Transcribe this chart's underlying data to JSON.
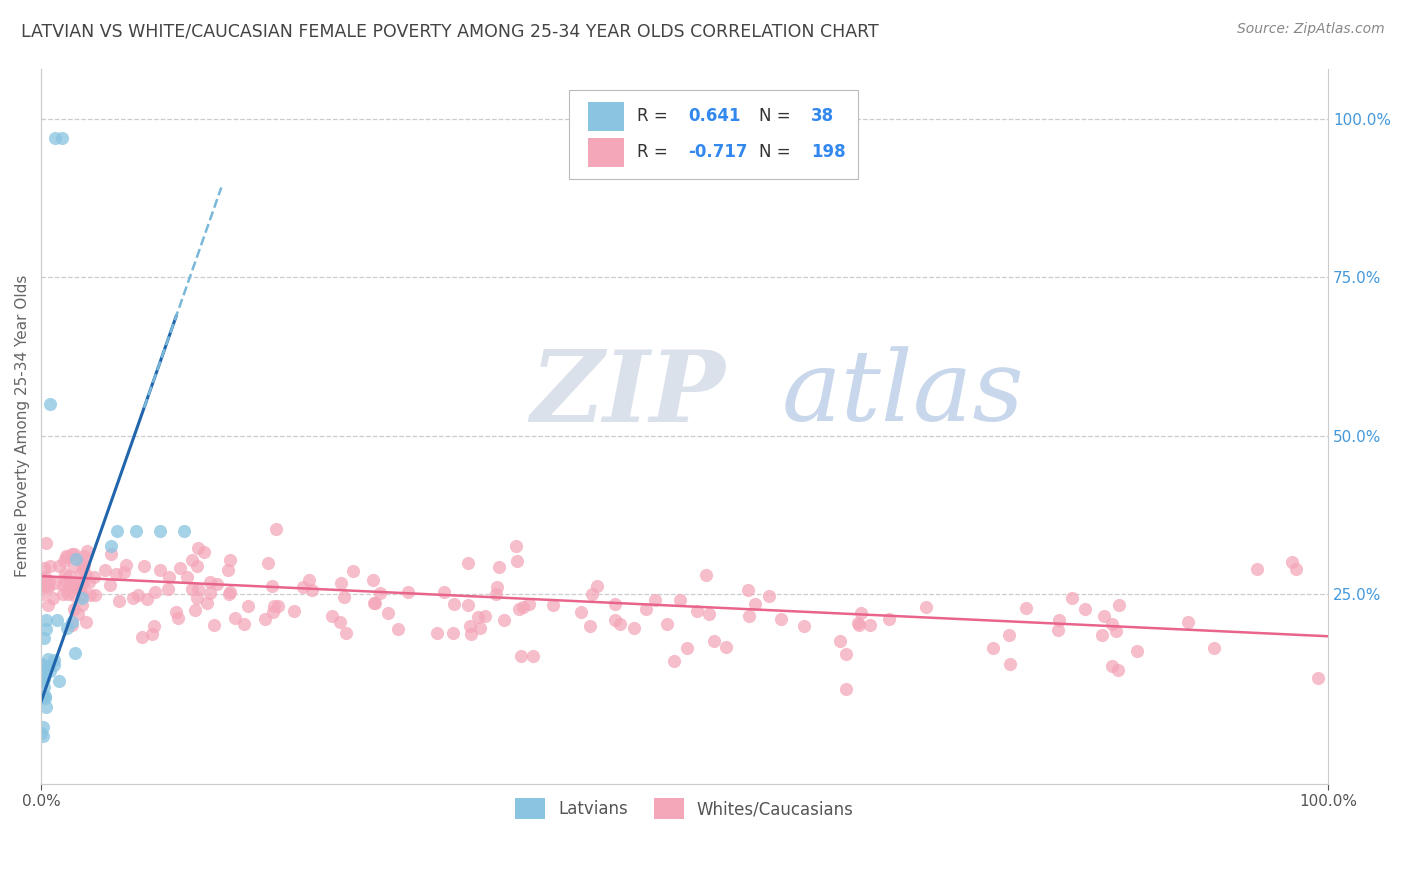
{
  "title": "LATVIAN VS WHITE/CAUCASIAN FEMALE POVERTY AMONG 25-34 YEAR OLDS CORRELATION CHART",
  "source": "Source: ZipAtlas.com",
  "ylabel": "Female Poverty Among 25-34 Year Olds",
  "latvian_R": 0.641,
  "latvian_N": 38,
  "white_R": -0.717,
  "white_N": 198,
  "latvian_color": "#89c4e1",
  "latvian_line_color": "#2166ac",
  "latvian_dash_color": "#7ab8d9",
  "white_color": "#f4a7b9",
  "white_line_color": "#e8648a",
  "legend_latvian_label": "Latvians",
  "legend_white_label": "Whites/Caucasians",
  "watermark_zip": "ZIP",
  "watermark_atlas": "atlas",
  "bg_color": "#ffffff",
  "plot_bg": "#ffffff",
  "grid_color": "#cccccc",
  "title_color": "#444444",
  "source_color": "#888888",
  "axis_color": "#cccccc",
  "right_ytick_color": "#4499dd",
  "ytick_labels_right": [
    "100.0%",
    "75.0%",
    "50.0%",
    "25.0%"
  ],
  "ytick_vals_right": [
    1.0,
    0.75,
    0.5,
    0.25
  ],
  "xlim": [
    0.0,
    1.0
  ],
  "ylim": [
    -0.05,
    1.08
  ],
  "legend_label_color": "#333333",
  "legend_value_color": "#3388ee"
}
